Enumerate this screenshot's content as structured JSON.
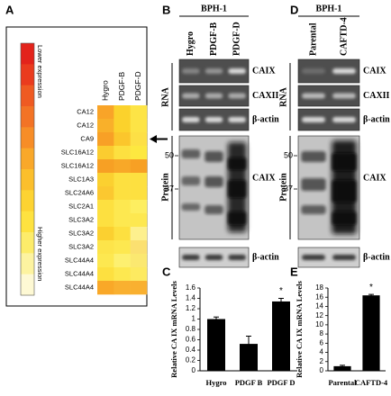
{
  "panel_a": {
    "label": "A",
    "legend": {
      "low": "Lower expression",
      "high": "Higher expression",
      "colors": [
        "#e3231b",
        "#ea3b1e",
        "#ef5a22",
        "#f37325",
        "#f78d27",
        "#f9a82a",
        "#fbbf2c",
        "#fdd332",
        "#fee240",
        "#fdec6a",
        "#fdf3a0",
        "#fef9d4"
      ]
    },
    "columns": [
      "Hygro",
      "PDGF-B",
      "PDGF-D"
    ],
    "rows": [
      {
        "gene": "CA12",
        "colors": [
          "#f9a428",
          "#fbd22c",
          "#fde446"
        ]
      },
      {
        "gene": "CA12",
        "colors": [
          "#f9b02a",
          "#fbd22c",
          "#fde446"
        ]
      },
      {
        "gene": "CA9",
        "colors": [
          "#f8a026",
          "#fbc62c",
          "#fde046"
        ]
      },
      {
        "gene": "SLC16A12",
        "colors": [
          "#fbcc30",
          "#fde040",
          "#fde840"
        ]
      },
      {
        "gene": "SLC16A12",
        "colors": [
          "#f7a024",
          "#f8a828",
          "#f7a024"
        ]
      },
      {
        "gene": "SLC1A3",
        "colors": [
          "#fbd030",
          "#fde040",
          "#fde040"
        ]
      },
      {
        "gene": "SLC24A6",
        "colors": [
          "#fbc830",
          "#fde040",
          "#fde040"
        ]
      },
      {
        "gene": "SLC2A1",
        "colors": [
          "#fde040",
          "#fde850",
          "#fdee60"
        ]
      },
      {
        "gene": "SLC3A2",
        "colors": [
          "#fde040",
          "#fde850",
          "#fde850"
        ]
      },
      {
        "gene": "SLC3A2",
        "colors": [
          "#fbd030",
          "#fde040",
          "#fdf08e"
        ]
      },
      {
        "gene": "SLC3A2",
        "colors": [
          "#fde44a",
          "#fde850",
          "#fbe070"
        ]
      },
      {
        "gene": "SLC44A4",
        "colors": [
          "#fde850",
          "#fdf070",
          "#fbe870"
        ]
      },
      {
        "gene": "SLC44A4",
        "colors": [
          "#fde040",
          "#fde850",
          "#fdea60"
        ]
      },
      {
        "gene": "SLC44A4",
        "colors": [
          "#f9a828",
          "#f9b030",
          "#f9b030"
        ]
      }
    ]
  },
  "panel_b": {
    "label": "B",
    "cell_line": "BPH-1",
    "lanes": [
      "Hygro",
      "PDGF-B",
      "PDGF-D"
    ],
    "rna_label": "RNA",
    "protein_label": "Protein",
    "rna_blots": [
      "CAIX",
      "CAXII",
      "β-actin"
    ],
    "protein_markers": [
      50,
      37
    ],
    "protein_blot": "CAIX",
    "loading_blot": "β-actin"
  },
  "panel_d": {
    "label": "D",
    "cell_line": "BPH-1",
    "lanes": [
      "Parental",
      "CAFTD-4"
    ],
    "rna_label": "RNA",
    "protein_label": "Protein",
    "rna_blots": [
      "CAIX",
      "CAXII",
      "β-actin"
    ],
    "protein_markers": [
      50,
      37
    ],
    "protein_blot": "CAIX",
    "loading_blot": "β-actin"
  },
  "chart_data": [
    {
      "type": "bar",
      "panel_label": "C",
      "ylabel": "Relative CA IX mRNA Levels",
      "categories": [
        "Hygro",
        "PDGF B",
        "PDGF D"
      ],
      "values": [
        1,
        0.52,
        1.34
      ],
      "errors": [
        0.04,
        0.15,
        0.06
      ],
      "color": "#000000",
      "ylim": [
        0,
        1.6
      ],
      "yticks": [
        0,
        0.2,
        0.4,
        0.6,
        0.8,
        1,
        1.2,
        1.4,
        1.6
      ],
      "annotations": [
        {
          "category": "PDGF D",
          "text": "*"
        }
      ]
    },
    {
      "type": "bar",
      "panel_label": "E",
      "ylabel": "Relative CA IX mRNA Levels",
      "categories": [
        "Parental",
        "CAFTD-4"
      ],
      "values": [
        1,
        16.4
      ],
      "errors": [
        0.2,
        0.2
      ],
      "color": "#000000",
      "ylim": [
        0,
        18
      ],
      "yticks": [
        0,
        2,
        4,
        6,
        8,
        10,
        12,
        14,
        16,
        18
      ],
      "annotations": [
        {
          "category": "CAFTD-4",
          "text": "*"
        }
      ]
    }
  ]
}
